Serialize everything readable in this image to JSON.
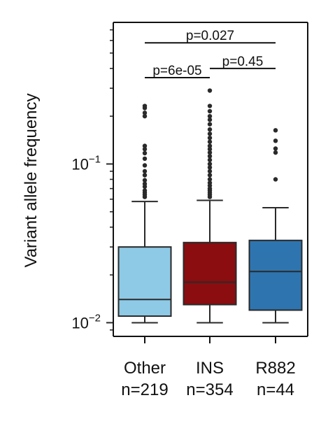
{
  "chart_data": {
    "type": "box",
    "title": "",
    "ylabel": "Variant allele frequency",
    "xlabel": "",
    "yscale": "log",
    "ylim": [
      0.0082,
      0.78
    ],
    "yticks": [
      {
        "value": 0.1,
        "base": "10",
        "exp": "−1"
      },
      {
        "value": 0.01,
        "base": "10",
        "exp": "−2"
      }
    ],
    "categories": [
      {
        "name": "Other",
        "n_label": "n=219"
      },
      {
        "name": "INS",
        "n_label": "n=354"
      },
      {
        "name": "R882",
        "n_label": "n=44"
      }
    ],
    "boxes": [
      {
        "category": "Other",
        "color": "#8ecae6",
        "whisker_low": 0.01,
        "q1": 0.011,
        "median": 0.014,
        "q3": 0.03,
        "whisker_high": 0.058,
        "outliers": [
          0.062,
          0.064,
          0.066,
          0.068,
          0.072,
          0.075,
          0.079,
          0.085,
          0.09,
          0.098,
          0.108,
          0.117,
          0.124,
          0.13,
          0.2,
          0.21,
          0.225,
          0.232
        ]
      },
      {
        "category": "INS",
        "color": "#8b0d10",
        "whisker_low": 0.01,
        "q1": 0.013,
        "median": 0.018,
        "q3": 0.032,
        "whisker_high": 0.059,
        "outliers": [
          0.062,
          0.064,
          0.066,
          0.068,
          0.07,
          0.073,
          0.076,
          0.08,
          0.085,
          0.09,
          0.095,
          0.1,
          0.106,
          0.112,
          0.118,
          0.124,
          0.13,
          0.138,
          0.146,
          0.155,
          0.165,
          0.178,
          0.19,
          0.2,
          0.215,
          0.232,
          0.29
        ]
      },
      {
        "category": "R882",
        "color": "#2e75b0",
        "whisker_low": 0.01,
        "q1": 0.012,
        "median": 0.021,
        "q3": 0.033,
        "whisker_high": 0.053,
        "outliers": [
          0.08,
          0.118,
          0.125,
          0.14,
          0.163
        ]
      }
    ],
    "annotations": [
      {
        "from": "Other",
        "to": "INS",
        "label": "p=6e-05",
        "y": 0.35
      },
      {
        "from": "INS",
        "to": "R882",
        "label": "p=0.45",
        "y": 0.4
      },
      {
        "from": "Other",
        "to": "R882",
        "label": "p=0.027",
        "y": 0.58
      }
    ],
    "grid": false,
    "legend": "none"
  }
}
